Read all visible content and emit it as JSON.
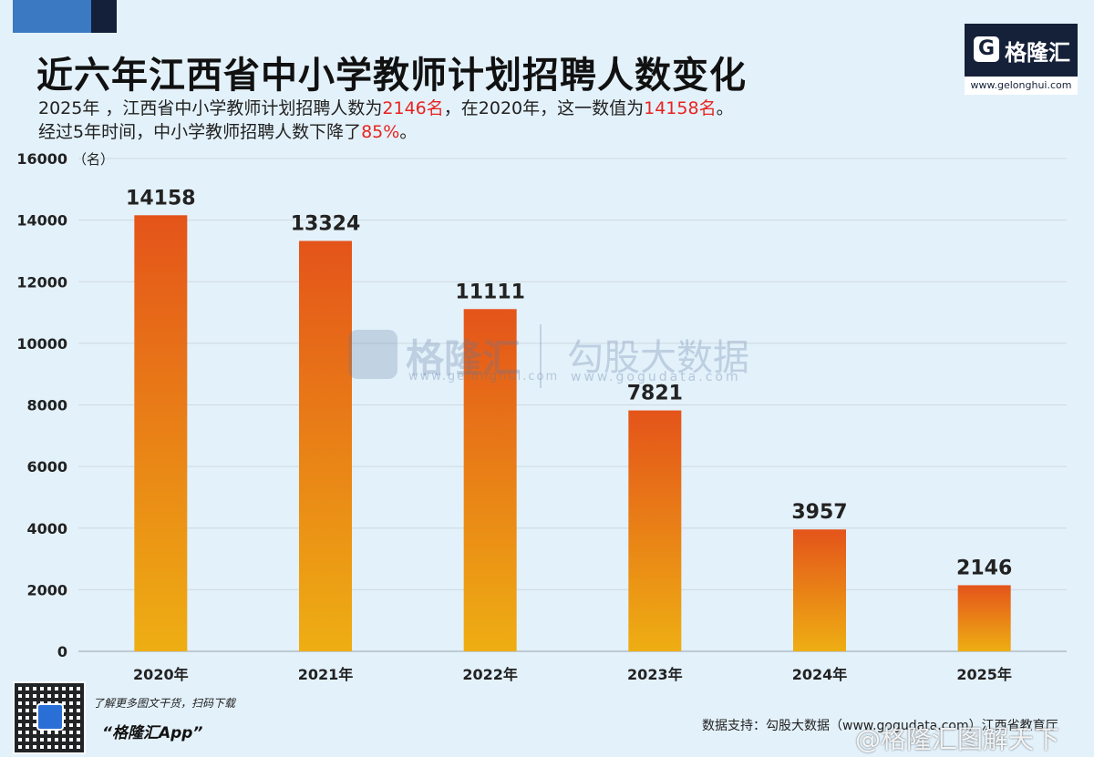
{
  "title": "近六年江西省中小学教师计划招聘人数变化",
  "subtitle": {
    "line1_a": "2025年 ，江西省中小学教师计划招聘人数为",
    "line1_v1": "2146名",
    "line1_b": "，在2020年，这一数值为",
    "line1_v2": "14158名",
    "line1_c": "。",
    "line2_a": "经过5年时间，中小学教师招聘人数下降了",
    "line2_v": "85%",
    "line2_b": "。"
  },
  "logo": {
    "mark": "G",
    "name": "格隆汇",
    "url": "www.gelonghui.com"
  },
  "watermark": {
    "logo_name": "格隆汇",
    "logo_url": "www.gelonghui.com",
    "source_name": "勾股大数据",
    "source_url": "www.gogudata.com"
  },
  "footer": {
    "cta": "了解更多图文干货，扫码下载",
    "app": "“格隆汇App”",
    "source": "数据支持：勾股大数据（www.gogudata.com）江西省教育厅",
    "weibo": "@格隆汇图解天下"
  },
  "colors": {
    "background": "#e3f1fa",
    "bar_top": "#e4541a",
    "bar_bottom": "#eeae13",
    "highlight": "#e8231f",
    "brand": "#152039"
  },
  "chart_data": {
    "type": "bar",
    "categories": [
      "2020年",
      "2021年",
      "2022年",
      "2023年",
      "2024年",
      "2025年"
    ],
    "values": [
      14158,
      13324,
      11111,
      7821,
      3957,
      2146
    ],
    "data_labels": [
      "14158",
      "13324",
      "11111",
      "7821",
      "3957",
      "2146"
    ],
    "ylabel": "（名）",
    "ylim": [
      0,
      16000
    ],
    "yticks": [
      0,
      2000,
      4000,
      6000,
      8000,
      10000,
      12000,
      14000,
      16000
    ],
    "grid": true,
    "legend": "none"
  }
}
